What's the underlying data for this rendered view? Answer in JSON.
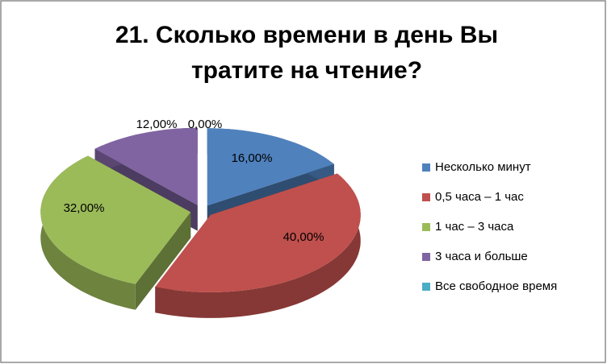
{
  "chart_data": {
    "type": "pie3d",
    "title": "21. Сколько времени в день Вы тратите на чтение?",
    "categories": [
      "Несколько минут",
      "0,5 часа – 1 час",
      "1 час – 3 часа",
      "3 часа и больше",
      "Все свободное время"
    ],
    "values": [
      16,
      40,
      32,
      12,
      0
    ],
    "value_labels": [
      "16,00%",
      "40,00%",
      "32,00%",
      "12,00%",
      "0,00%"
    ],
    "colors": [
      "#4f81bd",
      "#c0504d",
      "#9bbb59",
      "#8064a2",
      "#4bacc6"
    ],
    "legend": "right"
  }
}
